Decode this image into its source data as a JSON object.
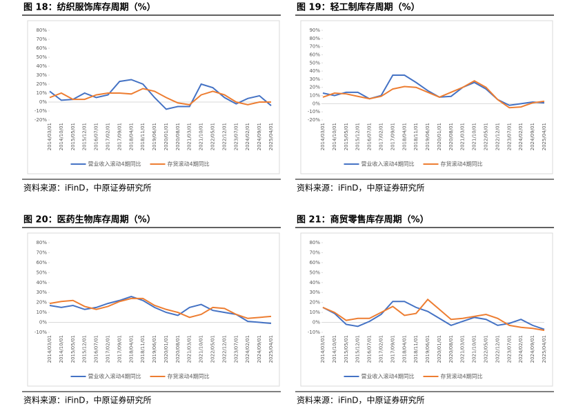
{
  "chart_data": [
    {
      "type": "line",
      "title": "图 18：纺织服饰库存周期（%）",
      "source": "资料来源：iFinD，中原证券研究所",
      "categories": [
        "2014/03/01",
        "2014/10/01",
        "2015/05/01",
        "2015/12/01",
        "2016/07/01",
        "2017/02/01",
        "2017/09/01",
        "2018/04/01",
        "2018/11/01",
        "2019/06/01",
        "2020/01/01",
        "2020/08/01",
        "2021/03/01",
        "2021/10/01",
        "2022/05/01",
        "2022/12/01",
        "2023/07/01",
        "2024/02/01",
        "2024/09/01",
        "2025/04/01"
      ],
      "series": [
        {
          "name": "营业收入滚动4期同比",
          "color": "#4472c4",
          "values": [
            12,
            2,
            3,
            10,
            5,
            8,
            23,
            25,
            20,
            5,
            -8,
            -5,
            -5,
            20,
            16,
            5,
            -2,
            4,
            7,
            -4
          ]
        },
        {
          "name": "存货滚动4期同比",
          "color": "#ed7d31",
          "values": [
            5,
            10,
            3,
            3,
            8,
            10,
            10,
            9,
            15,
            12,
            5,
            -1,
            -3,
            8,
            12,
            8,
            0,
            -3,
            0,
            0
          ]
        }
      ],
      "ylim": [
        -20,
        80
      ],
      "yticks": [
        {
          "value": -20,
          "label": "-20%"
        },
        {
          "value": -10,
          "label": "-10%"
        },
        {
          "value": 0,
          "label": "0%"
        },
        {
          "value": 10,
          "label": "10%"
        },
        {
          "value": 20,
          "label": "20%"
        },
        {
          "value": 30,
          "label": "30%"
        },
        {
          "value": 40,
          "label": "40%"
        },
        {
          "value": 50,
          "label": "50%"
        },
        {
          "value": 60,
          "label": "60%"
        },
        {
          "value": 70,
          "label": "70%"
        },
        {
          "value": 80,
          "label": "80%"
        }
      ]
    },
    {
      "type": "line",
      "title": "图 19：轻工制库存周期（%）",
      "source": "资料来源：iFinD，中原证券研究所",
      "categories": [
        "2014/03/01",
        "2014/10/01",
        "2015/05/01",
        "2015/12/01",
        "2016/07/01",
        "2017/02/01",
        "2017/09/01",
        "2018/04/01",
        "2018/11/01",
        "2019/06/01",
        "2020/01/01",
        "2020/08/01",
        "2021/03/01",
        "2021/10/01",
        "2022/05/01",
        "2022/12/01",
        "2023/07/01",
        "2024/02/01",
        "2024/09/01",
        "2025/04/01"
      ],
      "series": [
        {
          "name": "营业收入滚动4期同比",
          "color": "#4472c4",
          "values": [
            13,
            10,
            14,
            14,
            6,
            10,
            35,
            35,
            26,
            16,
            8,
            9,
            20,
            26,
            18,
            5,
            -2,
            0,
            2,
            1
          ]
        },
        {
          "name": "存货滚动4期同比",
          "color": "#ed7d31",
          "values": [
            8,
            13,
            12,
            9,
            6,
            9,
            18,
            21,
            20,
            14,
            8,
            14,
            20,
            28,
            20,
            5,
            -5,
            -4,
            1,
            3
          ]
        }
      ],
      "ylim": [
        -20,
        90
      ],
      "yticks": [
        {
          "value": -20,
          "label": "-20%"
        },
        {
          "value": -10,
          "label": "-10%"
        },
        {
          "value": 0,
          "label": "0%"
        },
        {
          "value": 10,
          "label": "10%"
        },
        {
          "value": 20,
          "label": "20%"
        },
        {
          "value": 30,
          "label": "30%"
        },
        {
          "value": 40,
          "label": "40%"
        },
        {
          "value": 50,
          "label": "50%"
        },
        {
          "value": 60,
          "label": "60%"
        },
        {
          "value": 70,
          "label": "70%"
        },
        {
          "value": 80,
          "label": "80%"
        },
        {
          "value": 90,
          "label": "90%"
        }
      ]
    },
    {
      "type": "line",
      "title": "图 20：医药生物库存周期（%）",
      "source": "资料来源：iFinD，中原证券研究所",
      "categories": [
        "2014/03/01",
        "2014/10/01",
        "2015/05/01",
        "2015/12/01",
        "2016/07/01",
        "2017/02/01",
        "2017/09/01",
        "2018/04/01",
        "2018/11/01",
        "2019/06/01",
        "2020/01/01",
        "2020/08/01",
        "2021/03/01",
        "2021/10/01",
        "2022/05/01",
        "2022/12/01",
        "2023/07/01",
        "2024/02/01",
        "2024/09/01",
        "2025/04/01"
      ],
      "series": [
        {
          "name": "营业收入滚动4期同比",
          "color": "#4472c4",
          "values": [
            17,
            15,
            17,
            13,
            15,
            19,
            22,
            26,
            22,
            15,
            10,
            7,
            15,
            18,
            12,
            10,
            8,
            1,
            0,
            -1
          ]
        },
        {
          "name": "存货滚动4期同比",
          "color": "#ed7d31",
          "values": [
            19,
            21,
            22,
            16,
            13,
            16,
            21,
            24,
            24,
            17,
            13,
            10,
            5,
            8,
            15,
            14,
            8,
            4,
            5,
            6
          ]
        }
      ],
      "ylim": [
        -10,
        80
      ],
      "yticks": [
        {
          "value": -10,
          "label": "-10%"
        },
        {
          "value": 0,
          "label": "0%"
        },
        {
          "value": 10,
          "label": "10%"
        },
        {
          "value": 20,
          "label": "20%"
        },
        {
          "value": 30,
          "label": "30%"
        },
        {
          "value": 40,
          "label": "40%"
        },
        {
          "value": 50,
          "label": "50%"
        },
        {
          "value": 60,
          "label": "60%"
        },
        {
          "value": 70,
          "label": "70%"
        },
        {
          "value": 80,
          "label": "80%"
        }
      ]
    },
    {
      "type": "line",
      "title": "图 21：商贸零售库存周期（%）",
      "source": "资料来源：iFinD，中原证券研究所",
      "categories": [
        "2014/03/01",
        "2014/10/01",
        "2015/05/01",
        "2015/12/01",
        "2016/07/01",
        "2017/02/01",
        "2017/09/01",
        "2018/04/01",
        "2018/11/01",
        "2019/06/01",
        "2020/01/01",
        "2020/08/01",
        "2021/03/01",
        "2021/10/01",
        "2022/05/01",
        "2022/12/01",
        "2023/07/01",
        "2024/02/01",
        "2024/09/01",
        "2025/04/01"
      ],
      "series": [
        {
          "name": "营业收入滚动4期同比",
          "color": "#4472c4",
          "values": [
            15,
            9,
            -2,
            -4,
            1,
            8,
            21,
            21,
            15,
            11,
            4,
            -3,
            1,
            5,
            3,
            -3,
            -1,
            3,
            -3,
            -7
          ]
        },
        {
          "name": "存货滚动4期同比",
          "color": "#ed7d31",
          "values": [
            15,
            10,
            2,
            4,
            4,
            10,
            16,
            7,
            9,
            23,
            13,
            3,
            4,
            6,
            8,
            4,
            -3,
            -5,
            -6,
            -8
          ]
        }
      ],
      "ylim": [
        -10,
        80
      ],
      "yticks": [
        {
          "value": -10,
          "label": "-10%"
        },
        {
          "value": 0,
          "label": "0%"
        },
        {
          "value": 10,
          "label": "10%"
        },
        {
          "value": 20,
          "label": "20%"
        },
        {
          "value": 30,
          "label": "30%"
        },
        {
          "value": 40,
          "label": "40%"
        },
        {
          "value": 50,
          "label": "50%"
        },
        {
          "value": 60,
          "label": "60%"
        },
        {
          "value": 70,
          "label": "70%"
        },
        {
          "value": 80,
          "label": "80%"
        }
      ]
    }
  ]
}
